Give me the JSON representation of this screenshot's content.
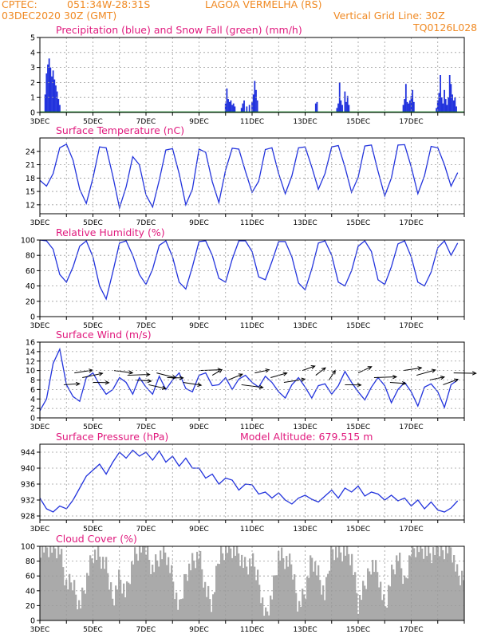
{
  "header": {
    "source": "CPTEC:",
    "coords": "051:34W-28:31S",
    "location": "LAGOA VERMELHA (RS)",
    "run": "03DEC2020 30Z (GMT)",
    "grid_note": "Vertical Grid Line: 30Z",
    "code": "TQ0126L028"
  },
  "colors": {
    "header": "#f08a24",
    "title": "#e0197d",
    "series": "#2233dd",
    "snow": "#1a9a2a",
    "cloud": "#aaaaaa",
    "grid": "#9a9a9a"
  },
  "x_ticks": [
    "3DEC",
    "5DEC",
    "7DEC",
    "9DEC",
    "11DEC",
    "13DEC",
    "15DEC",
    "17DEC"
  ],
  "chart_data": [
    {
      "type": "bar",
      "title": "Precipitation (blue) and Snow Fall (green) (mm/h)",
      "ylim": [
        0,
        5
      ],
      "yticks": [
        "0",
        "1",
        "2",
        "3",
        "4",
        "5"
      ],
      "series": [
        {
          "name": "Precipitation",
          "values": [
            [
              0.2,
              1.2
            ],
            [
              0.25,
              2.6
            ],
            [
              0.3,
              3.2
            ],
            [
              0.35,
              3.6
            ],
            [
              0.4,
              3.0
            ],
            [
              0.45,
              2.4
            ],
            [
              0.5,
              2.8
            ],
            [
              0.55,
              2.2
            ],
            [
              0.6,
              1.8
            ],
            [
              0.65,
              1.4
            ],
            [
              0.7,
              0.9
            ],
            [
              0.75,
              0.5
            ],
            [
              7.0,
              0.6
            ],
            [
              7.05,
              1.6
            ],
            [
              7.1,
              0.9
            ],
            [
              7.15,
              0.7
            ],
            [
              7.2,
              0.8
            ],
            [
              7.25,
              0.5
            ],
            [
              7.3,
              0.6
            ],
            [
              7.35,
              0.4
            ],
            [
              7.6,
              0.3
            ],
            [
              7.65,
              0.6
            ],
            [
              7.7,
              0.8
            ],
            [
              7.8,
              0.4
            ],
            [
              7.9,
              0.5
            ],
            [
              8.0,
              0.7
            ],
            [
              8.05,
              1.2
            ],
            [
              8.1,
              2.1
            ],
            [
              8.15,
              1.5
            ],
            [
              8.2,
              0.8
            ],
            [
              10.4,
              0.6
            ],
            [
              10.45,
              0.7
            ],
            [
              11.2,
              0.3
            ],
            [
              11.25,
              0.6
            ],
            [
              11.3,
              2.0
            ],
            [
              11.35,
              0.8
            ],
            [
              11.4,
              0.5
            ],
            [
              11.5,
              1.4
            ],
            [
              11.55,
              0.7
            ],
            [
              11.6,
              1.1
            ],
            [
              11.65,
              0.5
            ],
            [
              13.7,
              0.5
            ],
            [
              13.75,
              0.9
            ],
            [
              13.8,
              1.9
            ],
            [
              13.85,
              0.7
            ],
            [
              13.9,
              0.6
            ],
            [
              13.95,
              0.8
            ],
            [
              14.0,
              1.1
            ],
            [
              14.05,
              1.5
            ],
            [
              14.1,
              0.7
            ],
            [
              14.95,
              0.3
            ],
            [
              15.0,
              0.8
            ],
            [
              15.05,
              1.3
            ],
            [
              15.1,
              2.5
            ],
            [
              15.15,
              1.0
            ],
            [
              15.2,
              0.6
            ],
            [
              15.25,
              1.5
            ],
            [
              15.3,
              0.9
            ],
            [
              15.35,
              0.5
            ],
            [
              15.4,
              1.0
            ],
            [
              15.45,
              2.5
            ],
            [
              15.5,
              1.9
            ],
            [
              15.55,
              1.2
            ],
            [
              15.6,
              0.8
            ],
            [
              15.65,
              1.0
            ],
            [
              15.7,
              0.4
            ]
          ]
        },
        {
          "name": "Snow Fall",
          "values": []
        }
      ]
    },
    {
      "type": "line",
      "title": "Surface Temperature (nC)",
      "ylim": [
        10,
        27
      ],
      "yticks": [
        "12",
        "15",
        "18",
        "21",
        "24"
      ],
      "x": [
        0.0,
        0.25,
        0.5,
        0.75,
        1.0,
        1.25,
        1.5,
        1.75,
        2.0,
        2.25,
        2.5,
        2.75,
        3.0,
        3.25,
        3.5,
        3.75,
        4.0,
        4.25,
        4.5,
        4.75,
        5.0,
        5.25,
        5.5,
        5.75,
        6.0,
        6.25,
        6.5,
        6.75,
        7.0,
        7.25,
        7.5,
        7.75,
        8.0,
        8.25,
        8.5,
        8.75,
        9.0,
        9.25,
        9.5,
        9.75,
        10.0,
        10.25,
        10.5,
        10.75,
        11.0,
        11.25,
        11.5,
        11.75,
        12.0,
        12.25,
        12.5,
        12.75,
        13.0,
        13.25,
        13.5,
        13.75,
        14.0,
        14.25,
        14.5,
        14.75,
        15.0,
        15.25,
        15.5,
        15.75
      ],
      "series": [
        {
          "values": [
            17.5,
            16.2,
            19.0,
            24.8,
            25.6,
            22.0,
            15.5,
            12.3,
            18.0,
            25.0,
            24.8,
            18.5,
            11.3,
            16.0,
            22.8,
            21.0,
            14.2,
            11.5,
            17.5,
            24.3,
            24.6,
            19.0,
            12.0,
            15.5,
            24.5,
            23.8,
            17.2,
            12.5,
            19.8,
            24.7,
            24.5,
            19.5,
            14.8,
            17.3,
            24.4,
            24.8,
            19.0,
            14.5,
            18.5,
            24.8,
            25.0,
            20.5,
            15.5,
            19.0,
            25.0,
            25.3,
            20.5,
            14.8,
            18.2,
            25.2,
            25.4,
            19.5,
            14.0,
            18.0,
            25.4,
            25.5,
            20.5,
            14.5,
            18.5,
            25.1,
            24.8,
            21.0,
            16.2,
            19.2
          ]
        }
      ]
    },
    {
      "type": "line",
      "title": "Relative Humidity (%)",
      "ylim": [
        0,
        100
      ],
      "yticks": [
        "0",
        "20",
        "40",
        "60",
        "80",
        "100"
      ],
      "x": [
        0.0,
        0.25,
        0.5,
        0.75,
        1.0,
        1.25,
        1.5,
        1.75,
        2.0,
        2.25,
        2.5,
        2.75,
        3.0,
        3.25,
        3.5,
        3.75,
        4.0,
        4.25,
        4.5,
        4.75,
        5.0,
        5.25,
        5.5,
        5.75,
        6.0,
        6.25,
        6.5,
        6.75,
        7.0,
        7.25,
        7.5,
        7.75,
        8.0,
        8.25,
        8.5,
        8.75,
        9.0,
        9.25,
        9.5,
        9.75,
        10.0,
        10.25,
        10.5,
        10.75,
        11.0,
        11.25,
        11.5,
        11.75,
        12.0,
        12.25,
        12.5,
        12.75,
        13.0,
        13.25,
        13.5,
        13.75,
        14.0,
        14.25,
        14.5,
        14.75,
        15.0,
        15.25,
        15.5,
        15.75
      ],
      "series": [
        {
          "values": [
            100,
            99,
            88,
            55,
            45,
            65,
            92,
            99,
            78,
            40,
            23,
            58,
            96,
            99,
            80,
            55,
            42,
            62,
            93,
            99,
            78,
            45,
            36,
            65,
            98,
            99,
            80,
            50,
            45,
            75,
            99,
            99,
            85,
            52,
            48,
            72,
            98,
            98,
            78,
            44,
            35,
            62,
            96,
            99,
            80,
            45,
            40,
            60,
            92,
            99,
            85,
            48,
            42,
            65,
            95,
            99,
            78,
            45,
            40,
            58,
            90,
            99,
            80,
            96
          ]
        }
      ]
    },
    {
      "type": "line",
      "title": "Surface Wind (m/s)",
      "ylim": [
        0,
        16
      ],
      "yticks": [
        "0",
        "2",
        "4",
        "6",
        "8",
        "10",
        "12",
        "14",
        "16"
      ],
      "x": [
        0.0,
        0.25,
        0.5,
        0.75,
        1.0,
        1.25,
        1.5,
        1.75,
        2.0,
        2.25,
        2.5,
        2.75,
        3.0,
        3.25,
        3.5,
        3.75,
        4.0,
        4.25,
        4.5,
        4.75,
        5.0,
        5.25,
        5.5,
        5.75,
        6.0,
        6.25,
        6.5,
        6.75,
        7.0,
        7.25,
        7.5,
        7.75,
        8.0,
        8.25,
        8.5,
        8.75,
        9.0,
        9.25,
        9.5,
        9.75,
        10.0,
        10.25,
        10.5,
        10.75,
        11.0,
        11.25,
        11.5,
        11.75,
        12.0,
        12.25,
        12.5,
        12.75,
        13.0,
        13.25,
        13.5,
        13.75,
        14.0,
        14.25,
        14.5,
        14.75,
        15.0,
        15.25,
        15.5,
        15.75
      ],
      "series": [
        {
          "values": [
            1.5,
            4.0,
            11.5,
            14.5,
            7.0,
            4.5,
            3.5,
            8.5,
            9.5,
            7.0,
            5.0,
            6.0,
            8.5,
            7.5,
            5.0,
            8.5,
            6.5,
            5.0,
            8.8,
            6.0,
            8.0,
            9.5,
            6.2,
            5.5,
            9.0,
            9.5,
            6.8,
            7.0,
            8.5,
            6.0,
            8.2,
            9.0,
            7.5,
            6.5,
            8.8,
            7.5,
            5.5,
            4.2,
            7.0,
            8.5,
            6.5,
            4.2,
            6.8,
            7.2,
            5.0,
            6.8,
            9.8,
            7.5,
            5.5,
            3.8,
            6.5,
            8.5,
            6.8,
            3.2,
            6.0,
            7.5,
            5.5,
            2.5,
            6.5,
            7.2,
            5.5,
            2.2,
            7.0,
            8.0
          ]
        }
      ],
      "arrows": [
        [
          0.9,
          4.5
        ],
        [
          1.3,
          4.2
        ],
        [
          1.6,
          4.0
        ],
        [
          2.0,
          4.8
        ],
        [
          2.8,
          5.2
        ],
        [
          3.3,
          4.6
        ],
        [
          3.6,
          5.0
        ],
        [
          4.1,
          5.5
        ],
        [
          4.4,
          5.6
        ],
        [
          4.8,
          4.8
        ],
        [
          5.4,
          5.3
        ],
        [
          6.0,
          4.6
        ],
        [
          6.5,
          3.2
        ],
        [
          7.1,
          3.5
        ],
        [
          7.6,
          5.2
        ],
        [
          8.1,
          4.0
        ],
        [
          8.7,
          3.8
        ],
        [
          9.2,
          4.2
        ],
        [
          9.9,
          3.6
        ],
        [
          10.4,
          3.0
        ],
        [
          10.9,
          2.6
        ],
        [
          11.5,
          4.8
        ],
        [
          12.0,
          3.4
        ],
        [
          12.6,
          4.6
        ],
        [
          13.2,
          5.0
        ],
        [
          13.7,
          4.2
        ],
        [
          14.2,
          3.8
        ],
        [
          14.7,
          4.0
        ],
        [
          15.2,
          3.6
        ],
        [
          15.6,
          4.8
        ]
      ]
    },
    {
      "type": "line",
      "title": "Surface Pressure (hPa)",
      "subtitle": "Model Altitude: 679.515  m",
      "ylim": [
        927,
        946
      ],
      "yticks": [
        "928",
        "932",
        "936",
        "940",
        "944"
      ],
      "x": [
        0.0,
        0.25,
        0.5,
        0.75,
        1.0,
        1.25,
        1.5,
        1.75,
        2.0,
        2.25,
        2.5,
        2.75,
        3.0,
        3.25,
        3.5,
        3.75,
        4.0,
        4.25,
        4.5,
        4.75,
        5.0,
        5.25,
        5.5,
        5.75,
        6.0,
        6.25,
        6.5,
        6.75,
        7.0,
        7.25,
        7.5,
        7.75,
        8.0,
        8.25,
        8.5,
        8.75,
        9.0,
        9.25,
        9.5,
        9.75,
        10.0,
        10.25,
        10.5,
        10.75,
        11.0,
        11.25,
        11.5,
        11.75,
        12.0,
        12.25,
        12.5,
        12.75,
        13.0,
        13.25,
        13.5,
        13.75,
        14.0,
        14.25,
        14.5,
        14.75,
        15.0,
        15.25,
        15.5,
        15.75
      ],
      "series": [
        {
          "values": [
            932.5,
            929.8,
            929.0,
            930.5,
            929.8,
            932.0,
            935.0,
            938.0,
            939.5,
            941.0,
            938.5,
            941.5,
            944.0,
            942.5,
            944.5,
            943.0,
            944.0,
            942.0,
            944.3,
            941.5,
            943.0,
            940.5,
            942.5,
            940.0,
            940.0,
            937.5,
            938.5,
            936.0,
            937.5,
            937.0,
            934.5,
            936.0,
            935.8,
            933.5,
            934.0,
            932.5,
            933.8,
            932.0,
            931.0,
            932.5,
            933.2,
            932.2,
            931.5,
            933.0,
            934.5,
            932.5,
            935.0,
            934.0,
            935.5,
            933.0,
            934.0,
            933.5,
            932.0,
            933.2,
            931.8,
            932.5,
            930.5,
            932.0,
            929.8,
            931.5,
            929.5,
            929.0,
            930.0,
            931.8
          ]
        }
      ]
    },
    {
      "type": "bar",
      "title": "Cloud Cover (%)",
      "ylim": [
        0,
        100
      ],
      "yticks": [
        "0",
        "20",
        "40",
        "60",
        "80",
        "100"
      ],
      "x": [
        0.0,
        0.25,
        0.5,
        0.75,
        1.0,
        1.25,
        1.5,
        1.75,
        2.0,
        2.25,
        2.5,
        2.75,
        3.0,
        3.25,
        3.5,
        3.75,
        4.0,
        4.25,
        4.5,
        4.75,
        5.0,
        5.25,
        5.5,
        5.75,
        6.0,
        6.25,
        6.5,
        6.75,
        7.0,
        7.25,
        7.5,
        7.75,
        8.0,
        8.25,
        8.5,
        8.75,
        9.0,
        9.25,
        9.5,
        9.75,
        10.0,
        10.25,
        10.5,
        10.75,
        11.0,
        11.25,
        11.5,
        11.75,
        12.0,
        12.25,
        12.5,
        12.75,
        13.0,
        13.25,
        13.5,
        13.75,
        14.0,
        14.25,
        14.5,
        14.75,
        15.0,
        15.25,
        15.5,
        15.75
      ],
      "series": [
        {
          "values": [
            100,
            100,
            98,
            95,
            45,
            50,
            20,
            55,
            90,
            85,
            70,
            30,
            60,
            35,
            80,
            95,
            98,
            70,
            88,
            92,
            55,
            10,
            65,
            80,
            90,
            40,
            20,
            85,
            100,
            98,
            90,
            70,
            78,
            55,
            5,
            35,
            88,
            80,
            72,
            20,
            40,
            85,
            60,
            30,
            100,
            92,
            95,
            85,
            20,
            45,
            80,
            65,
            15,
            60,
            85,
            50,
            98,
            100,
            95,
            88,
            96,
            98,
            100,
            60
          ]
        }
      ]
    }
  ]
}
